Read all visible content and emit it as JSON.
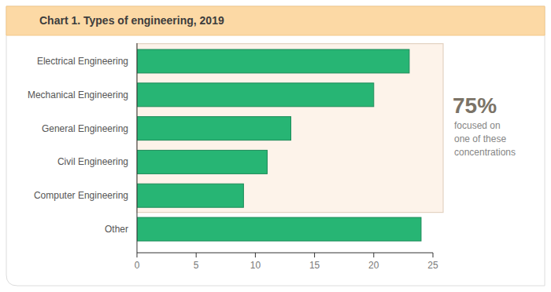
{
  "chart_data": {
    "type": "bar",
    "orientation": "horizontal",
    "title": "Chart 1. Types of engineering, 2019",
    "categories": [
      "Electrical Engineering",
      "Mechanical Engineering",
      "General Engineering",
      "Civil Engineering",
      "Computer Engineering",
      "Other"
    ],
    "values": [
      23,
      20,
      13,
      11,
      9,
      24
    ],
    "color": "#27b574",
    "xlim": [
      0,
      25
    ],
    "xticks": [
      0,
      5,
      10,
      15,
      20,
      25
    ],
    "grid": false,
    "annotations": [
      {
        "label": "75%",
        "text": [
          "focused on",
          "one of these",
          "concentrations"
        ],
        "categories": [
          "Electrical Engineering",
          "Mechanical Engineering",
          "General Engineering",
          "Civil Engineering",
          "Computer Engineering"
        ]
      }
    ]
  }
}
